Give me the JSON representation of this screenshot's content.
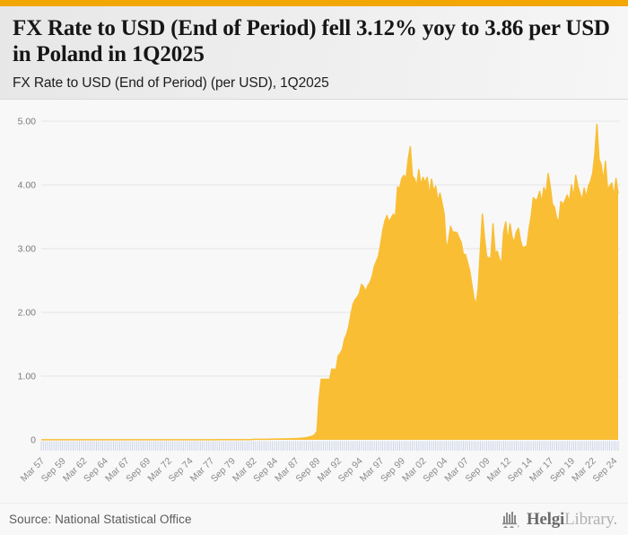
{
  "header": {
    "title": "FX Rate to USD (End of Period) fell 3.12% yoy to 3.86 per USD in Poland in 1Q2025",
    "subtitle": "FX Rate to USD (End of Period) (per USD), 1Q2025"
  },
  "footer": {
    "source": "Source: National Statistical Office",
    "brand_bold": "Helgi",
    "brand_light": "Library."
  },
  "colors": {
    "accent_top_bar": "#F2A702",
    "area_fill": "#F9BE34",
    "gridline": "#e3e3e3",
    "tick": "#c9d1e8"
  },
  "chart_data": {
    "type": "area",
    "title": "FX Rate to USD (End of Period) (per USD), 1Q2025",
    "country": "Poland",
    "latest_period": "1Q2025",
    "latest_value": 3.86,
    "yoy_change_pct": -3.12,
    "frequency": "quarterly",
    "start_period": "Mar 1957",
    "end_period": "Mar 2025",
    "ylim": [
      0,
      5
    ],
    "grid": "horizontal",
    "legend": "none",
    "y_ticks": [
      "0",
      "1.00",
      "2.00",
      "3.00",
      "4.00",
      "5.00"
    ],
    "x_tick_every": 10,
    "x_tick_labels": [
      "Mar 57",
      "Sep 59",
      "Mar 62",
      "Sep 64",
      "Mar 67",
      "Sep 69",
      "Mar 72",
      "Sep 74",
      "Mar 77",
      "Sep 79",
      "Mar 82",
      "Sep 84",
      "Mar 87",
      "Sep 89",
      "Mar 92",
      "Sep 94",
      "Mar 97",
      "Sep 99",
      "Mar 02",
      "Sep 04",
      "Mar 07",
      "Sep 09",
      "Mar 12",
      "Sep 14",
      "Mar 17",
      "Sep 19",
      "Mar 22",
      "Sep 24"
    ],
    "values": [
      0.0024,
      0.0024,
      0.0024,
      0.0024,
      0.0024,
      0.0024,
      0.0024,
      0.0024,
      0.0024,
      0.0024,
      0.0024,
      0.0024,
      0.0024,
      0.0024,
      0.0024,
      0.0024,
      0.0024,
      0.0024,
      0.0024,
      0.0024,
      0.0024,
      0.0024,
      0.0024,
      0.0024,
      0.0024,
      0.0024,
      0.0024,
      0.0024,
      0.0024,
      0.0024,
      0.0024,
      0.0024,
      0.0024,
      0.0024,
      0.0024,
      0.0024,
      0.0024,
      0.0024,
      0.0024,
      0.0024,
      0.0024,
      0.0024,
      0.0024,
      0.0024,
      0.0024,
      0.0024,
      0.0024,
      0.0024,
      0.0024,
      0.0024,
      0.0024,
      0.0024,
      0.0024,
      0.0024,
      0.0024,
      0.0024,
      0.0024,
      0.0024,
      0.0024,
      0.0024,
      0.0024,
      0.0024,
      0.0024,
      0.0024,
      0.0024,
      0.0024,
      0.0024,
      0.0024,
      0.0024,
      0.0024,
      0.0024,
      0.0024,
      0.0024,
      0.0024,
      0.0024,
      0.0024,
      0.0024,
      0.0024,
      0.0024,
      0.0024,
      0.0024,
      0.0024,
      0.0024,
      0.0024,
      0.0033,
      0.0033,
      0.0033,
      0.0033,
      0.0033,
      0.0033,
      0.0033,
      0.0033,
      0.0033,
      0.0033,
      0.0033,
      0.0033,
      0.0033,
      0.0033,
      0.0033,
      0.0033,
      0.0085,
      0.0085,
      0.0085,
      0.0085,
      0.0092,
      0.0092,
      0.0092,
      0.0092,
      0.0113,
      0.0117,
      0.012,
      0.0125,
      0.0135,
      0.014,
      0.0145,
      0.0147,
      0.0155,
      0.0165,
      0.017,
      0.0175,
      0.019,
      0.021,
      0.024,
      0.0265,
      0.03,
      0.036,
      0.043,
      0.05,
      0.061,
      0.085,
      0.134,
      0.65,
      0.95,
      0.95,
      0.95,
      0.95,
      0.95,
      1.11,
      1.11,
      1.1,
      1.32,
      1.36,
      1.42,
      1.58,
      1.66,
      1.78,
      1.97,
      2.13,
      2.2,
      2.24,
      2.3,
      2.44,
      2.4,
      2.33,
      2.42,
      2.47,
      2.56,
      2.72,
      2.8,
      2.88,
      3.07,
      3.28,
      3.43,
      3.52,
      3.42,
      3.48,
      3.54,
      3.5,
      3.97,
      3.95,
      4.1,
      4.15,
      4.1,
      4.4,
      4.6,
      4.14,
      4.1,
      3.97,
      4.24,
      3.99,
      4.12,
      4.04,
      4.12,
      3.84,
      4.09,
      3.9,
      3.98,
      3.74,
      3.87,
      3.71,
      3.54,
      2.99,
      3.12,
      3.35,
      3.26,
      3.26,
      3.25,
      3.17,
      3.1,
      2.91,
      2.91,
      2.78,
      2.66,
      2.44,
      2.23,
      2.12,
      2.37,
      2.96,
      3.54,
      3.17,
      2.88,
      2.85,
      2.86,
      3.39,
      2.93,
      2.96,
      2.84,
      2.75,
      3.26,
      3.42,
      3.11,
      3.39,
      3.18,
      3.1,
      3.26,
      3.32,
      3.12,
      3.01,
      3.03,
      3.04,
      3.31,
      3.51,
      3.8,
      3.76,
      3.78,
      3.9,
      3.73,
      3.96,
      3.86,
      4.18,
      3.97,
      3.7,
      3.65,
      3.48,
      3.42,
      3.74,
      3.69,
      3.76,
      3.84,
      3.73,
      4.0,
      3.8,
      4.15,
      3.98,
      3.87,
      3.76,
      3.95,
      3.8,
      3.98,
      4.06,
      4.18,
      4.48,
      4.95,
      4.4,
      4.32,
      4.06,
      4.37,
      3.93,
      3.98,
      4.03,
      3.82,
      4.1,
      3.86
    ]
  }
}
